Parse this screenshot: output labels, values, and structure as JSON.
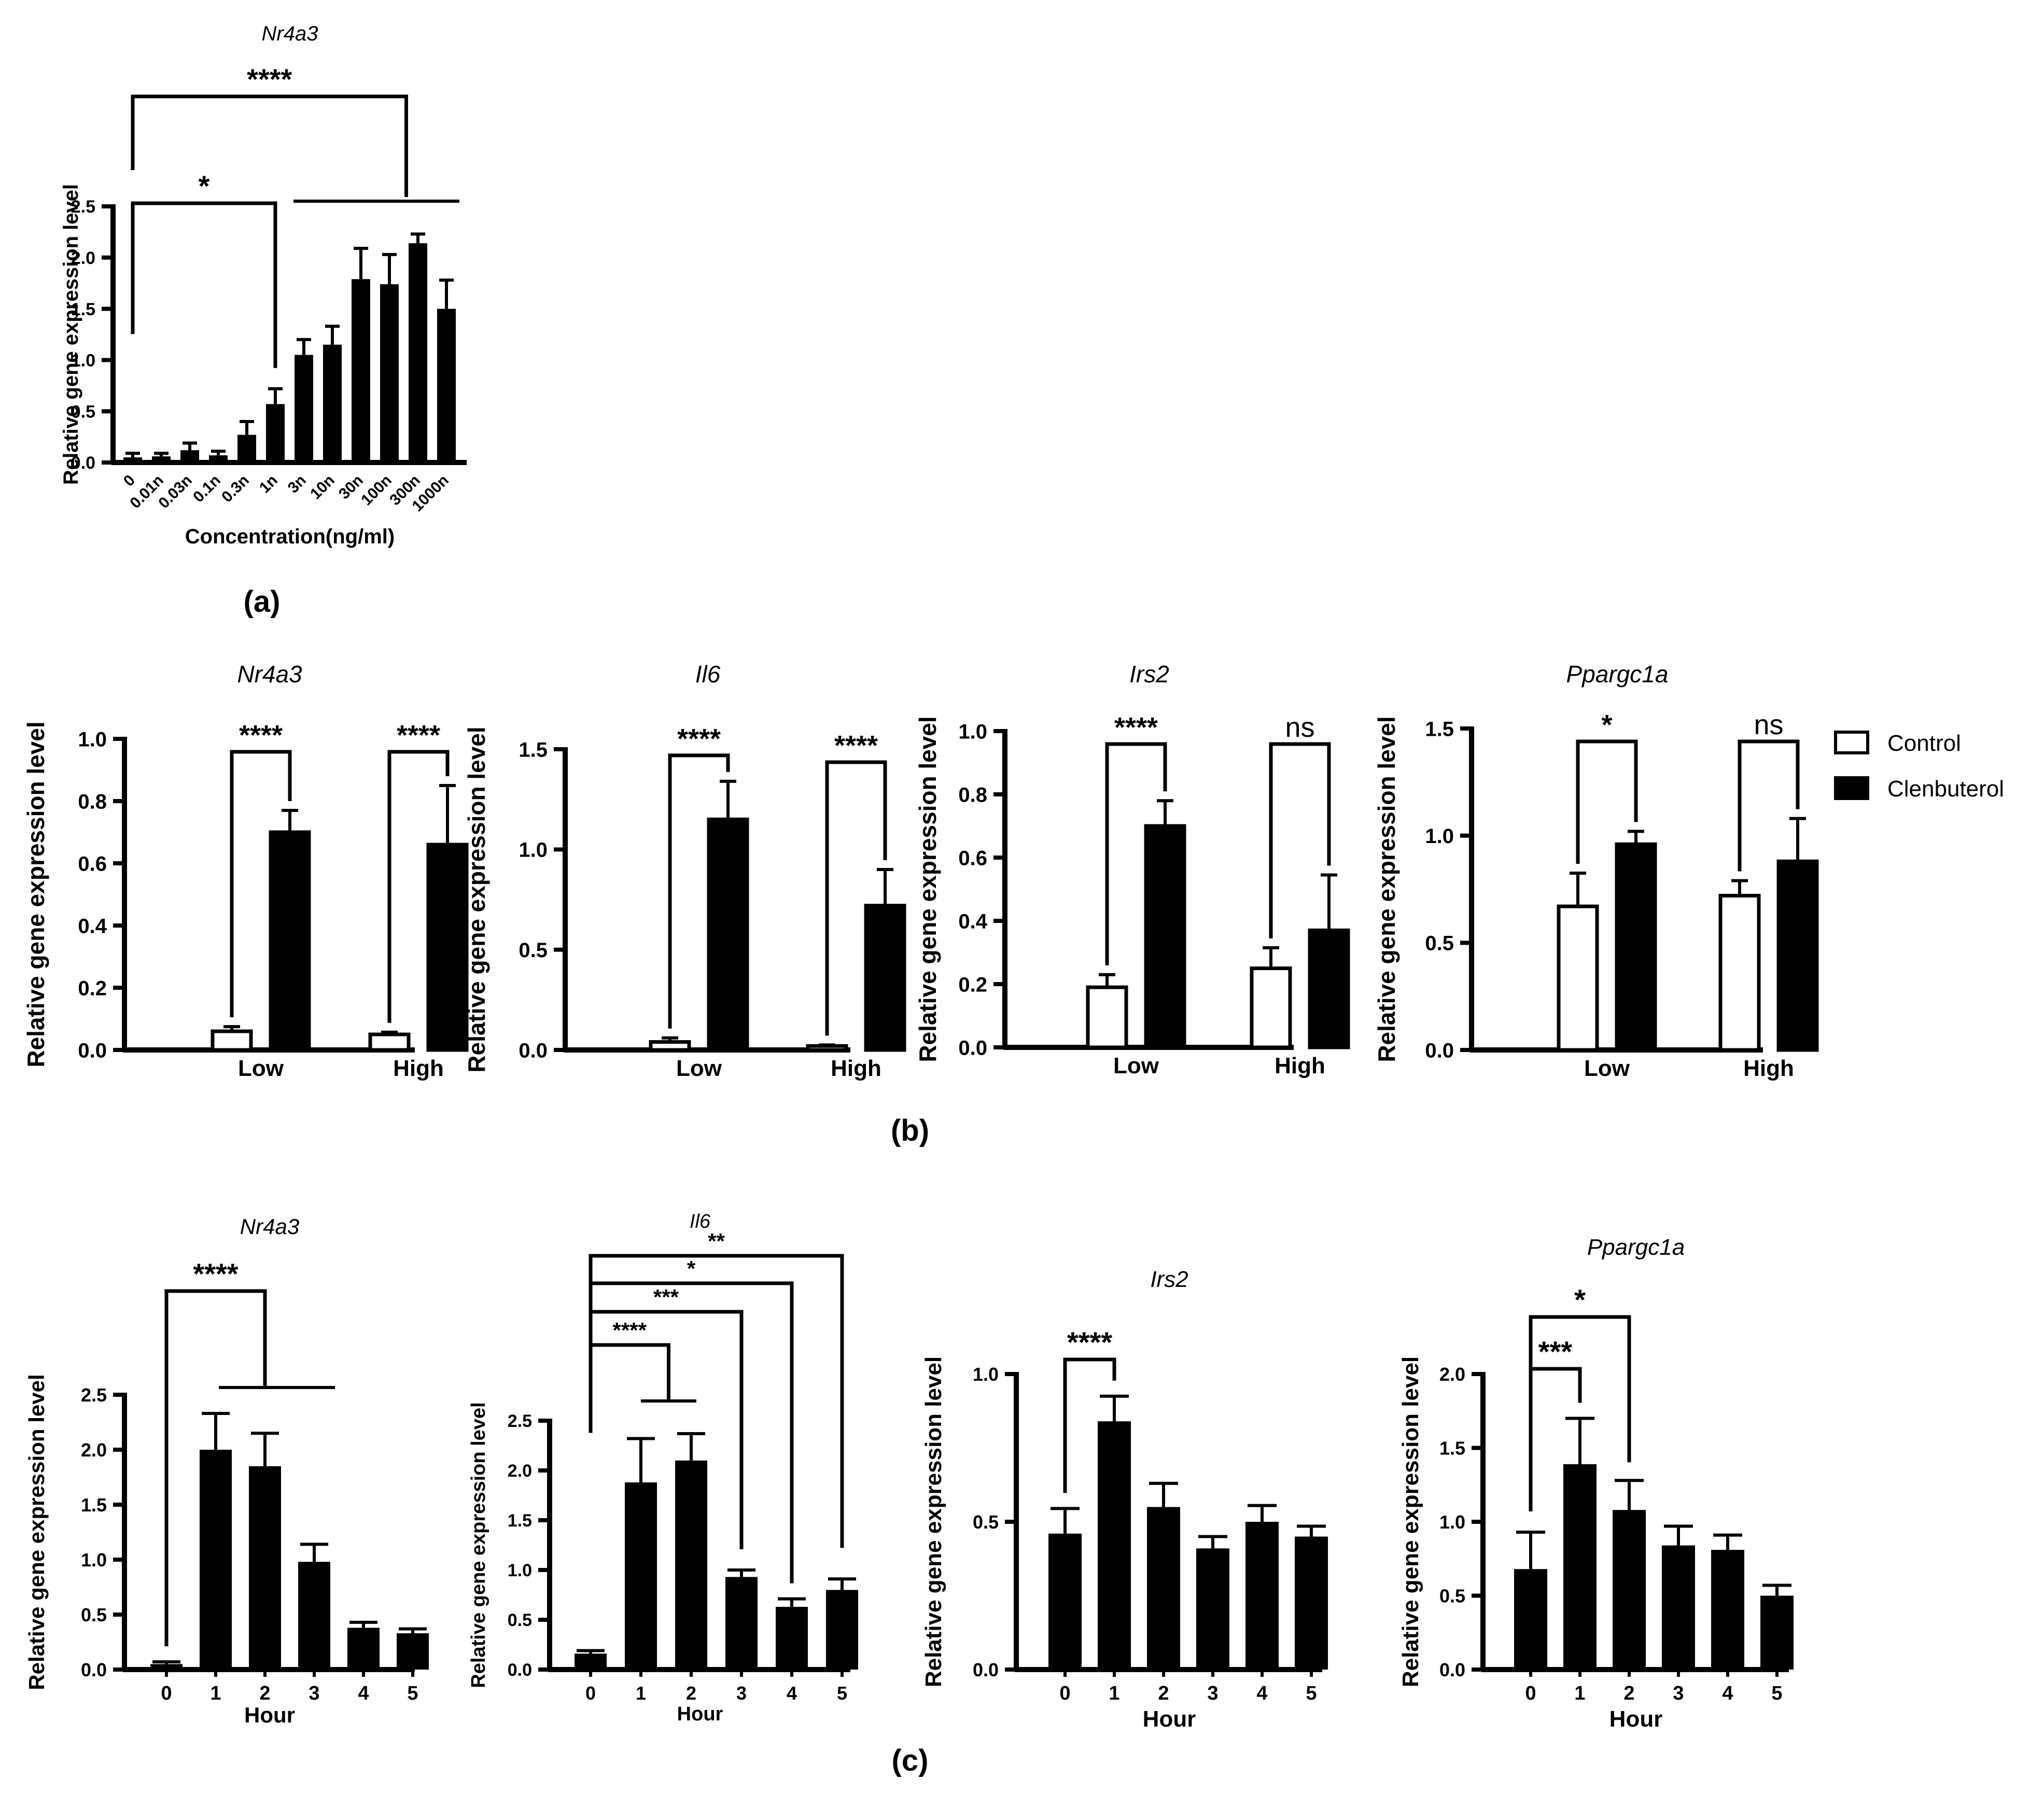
{
  "panel_labels": {
    "a": "(a)",
    "b": "(b)",
    "c": "(c)"
  },
  "legend": {
    "items": [
      {
        "label": "Control",
        "color": "#ffffff"
      },
      {
        "label": "Clenbuterol",
        "color": "#000000"
      }
    ]
  },
  "colors": {
    "bar": "#000000",
    "control": "#ffffff",
    "axis": "#000000"
  },
  "chart_data": [
    {
      "id": "a-nr4a3",
      "type": "bar",
      "panel": "a",
      "title": "Nr4a3",
      "xlabel": "Concentration(ng/ml)",
      "ylabel": "Relative gene expression level",
      "ylim": [
        0,
        2.5
      ],
      "yticks": [
        0,
        0.5,
        1.0,
        1.5,
        2.0,
        2.5
      ],
      "yticklabels": [
        "0.0",
        "0.5",
        "1.0",
        "1.5",
        "2.0",
        "2.5"
      ],
      "categories": [
        "0",
        "0.01n",
        "0.03n",
        "0.1n",
        "0.3n",
        "1n",
        "3n",
        "10n",
        "30n",
        "100n",
        "300n",
        "1000n"
      ],
      "values": [
        0.05,
        0.06,
        0.12,
        0.07,
        0.27,
        0.57,
        1.05,
        1.15,
        1.79,
        1.74,
        2.14,
        1.5
      ],
      "errors": [
        0.04,
        0.03,
        0.07,
        0.04,
        0.13,
        0.15,
        0.15,
        0.18,
        0.3,
        0.29,
        0.09,
        0.28
      ],
      "annotations": [
        "*",
        "****"
      ]
    },
    {
      "id": "b-nr4a3",
      "type": "bar",
      "panel": "b",
      "title": "Nr4a3",
      "xlabel": "",
      "ylabel": "Relative gene expression level",
      "ylim": [
        0,
        1.0
      ],
      "yticks": [
        0,
        0.2,
        0.4,
        0.6,
        0.8,
        1.0
      ],
      "yticklabels": [
        "0.0",
        "0.2",
        "0.4",
        "0.6",
        "0.8",
        "1.0"
      ],
      "categories": [
        "Low",
        "High"
      ],
      "series": [
        {
          "name": "Control",
          "values": [
            0.06,
            0.05
          ],
          "errors": [
            0.015,
            0.007
          ]
        },
        {
          "name": "Clenbuterol",
          "values": [
            0.7,
            0.66
          ],
          "errors": [
            0.07,
            0.19
          ]
        }
      ],
      "annotations": [
        "****",
        "****"
      ]
    },
    {
      "id": "b-il6",
      "type": "bar",
      "panel": "b",
      "title": "Il6",
      "xlabel": "",
      "ylabel": "Relative gene expression level",
      "ylim": [
        0,
        1.5
      ],
      "yticks": [
        0,
        0.5,
        1.0,
        1.5
      ],
      "yticklabels": [
        "0.0",
        "0.5",
        "1.0",
        "1.5"
      ],
      "categories": [
        "Low",
        "High"
      ],
      "series": [
        {
          "name": "Control",
          "values": [
            0.04,
            0.02
          ],
          "errors": [
            0.02,
            0.005
          ]
        },
        {
          "name": "Clenbuterol",
          "values": [
            1.15,
            0.72
          ],
          "errors": [
            0.19,
            0.18
          ]
        }
      ],
      "annotations": [
        "****",
        "****"
      ]
    },
    {
      "id": "b-irs2",
      "type": "bar",
      "panel": "b",
      "title": "Irs2",
      "xlabel": "",
      "ylabel": "Relative gene expression level",
      "ylim": [
        0,
        1.0
      ],
      "yticks": [
        0,
        0.2,
        0.4,
        0.6,
        0.8,
        1.0
      ],
      "yticklabels": [
        "0.0",
        "0.2",
        "0.4",
        "0.6",
        "0.8",
        "1.0"
      ],
      "categories": [
        "Low",
        "High"
      ],
      "series": [
        {
          "name": "Control",
          "values": [
            0.19,
            0.25
          ],
          "errors": [
            0.04,
            0.065
          ]
        },
        {
          "name": "Clenbuterol",
          "values": [
            0.7,
            0.37
          ],
          "errors": [
            0.08,
            0.175
          ]
        }
      ],
      "annotations": [
        "****",
        "ns"
      ]
    },
    {
      "id": "b-ppargc1a",
      "type": "bar",
      "panel": "b",
      "title": "Ppargc1a",
      "xlabel": "",
      "ylabel": "Relative gene expression level",
      "ylim": [
        0,
        1.5
      ],
      "yticks": [
        0,
        0.5,
        1.0,
        1.5
      ],
      "yticklabels": [
        "0.0",
        "0.5",
        "1.0",
        "1.5"
      ],
      "categories": [
        "Low",
        "High"
      ],
      "series": [
        {
          "name": "Control",
          "values": [
            0.67,
            0.72
          ],
          "errors": [
            0.155,
            0.07
          ]
        },
        {
          "name": "Clenbuterol",
          "values": [
            0.96,
            0.88
          ],
          "errors": [
            0.06,
            0.2
          ]
        }
      ],
      "annotations": [
        "*",
        "ns"
      ]
    },
    {
      "id": "c-nr4a3",
      "type": "bar",
      "panel": "c",
      "title": "Nr4a3",
      "xlabel": "Hour",
      "ylabel": "Relative gene expression level",
      "ylim": [
        0,
        2.5
      ],
      "yticks": [
        0,
        0.5,
        1.0,
        1.5,
        2.0,
        2.5
      ],
      "yticklabels": [
        "0.0",
        "0.5",
        "1.0",
        "1.5",
        "2.0",
        "2.5"
      ],
      "categories": [
        "0",
        "1",
        "2",
        "3",
        "4",
        "5"
      ],
      "values": [
        0.05,
        2.0,
        1.85,
        0.98,
        0.38,
        0.33
      ],
      "errors": [
        0.02,
        0.33,
        0.3,
        0.16,
        0.05,
        0.04
      ],
      "annotations": [
        "****"
      ]
    },
    {
      "id": "c-il6",
      "type": "bar",
      "panel": "c",
      "title": "Il6",
      "xlabel": "Hour",
      "ylabel": "Relative gene expression level",
      "ylim": [
        0,
        2.5
      ],
      "yticks": [
        0,
        0.5,
        1.0,
        1.5,
        2.0,
        2.5
      ],
      "yticklabels": [
        "0.0",
        "0.5",
        "1.0",
        "1.5",
        "2.0",
        "2.5"
      ],
      "categories": [
        "0",
        "1",
        "2",
        "3",
        "4",
        "5"
      ],
      "values": [
        0.16,
        1.88,
        2.1,
        0.93,
        0.63,
        0.8
      ],
      "errors": [
        0.03,
        0.44,
        0.27,
        0.07,
        0.08,
        0.11
      ],
      "annotations": [
        "****",
        "***",
        "*",
        "**"
      ]
    },
    {
      "id": "c-irs2",
      "type": "bar",
      "panel": "c",
      "title": "Irs2",
      "xlabel": "Hour",
      "ylabel": "Relative gene expression level",
      "ylim": [
        0,
        1.0
      ],
      "yticks": [
        0,
        0.5,
        1.0
      ],
      "yticklabels": [
        "0.0",
        "0.5",
        "1.0"
      ],
      "categories": [
        "0",
        "1",
        "2",
        "3",
        "4",
        "5"
      ],
      "values": [
        0.46,
        0.84,
        0.55,
        0.41,
        0.5,
        0.45
      ],
      "errors": [
        0.085,
        0.085,
        0.08,
        0.04,
        0.055,
        0.035
      ],
      "annotations": [
        "****"
      ]
    },
    {
      "id": "c-ppargc1a",
      "type": "bar",
      "panel": "c",
      "title": "Ppargc1a",
      "xlabel": "Hour",
      "ylabel": "Relative gene expression level",
      "ylim": [
        0,
        2.0
      ],
      "yticks": [
        0,
        0.5,
        1.0,
        1.5,
        2.0
      ],
      "yticklabels": [
        "0.0",
        "0.5",
        "1.0",
        "1.5",
        "2.0"
      ],
      "categories": [
        "0",
        "1",
        "2",
        "3",
        "4",
        "5"
      ],
      "values": [
        0.68,
        1.39,
        1.08,
        0.84,
        0.81,
        0.5
      ],
      "errors": [
        0.25,
        0.31,
        0.2,
        0.13,
        0.1,
        0.07
      ],
      "annotations": [
        "***",
        "*"
      ]
    }
  ]
}
